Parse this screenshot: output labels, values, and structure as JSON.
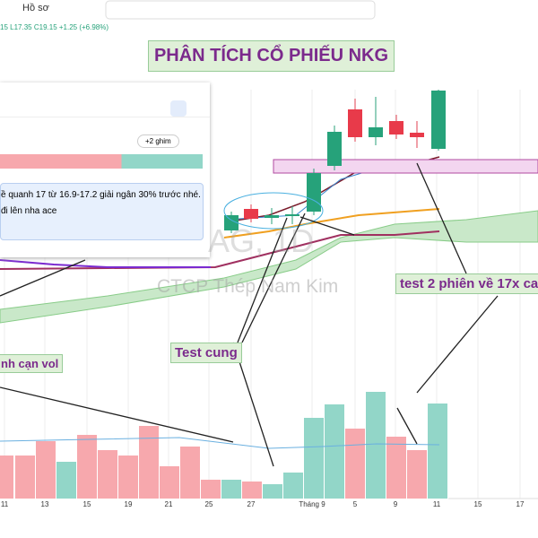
{
  "toolbar": {
    "profile": "Hồ sơ"
  },
  "ohlc": {
    "prefix": "15",
    "low": "L17.35",
    "close": "C19.15",
    "change": "+1.25 (+6.98%)"
  },
  "title": "PHÂN TÍCH CỔ PHIẾU NKG",
  "panel": {
    "pins": "+2 ghim",
    "message": [
      "ề quanh 17 từ 16.9-17.2 giải ngân 30% trước nhé.",
      "đi lên nha ace"
    ]
  },
  "watermark": {
    "symbol": "AG, 1D",
    "company": "CTCP Thép Nam Kim"
  },
  "annotations": [
    "test 2 phiên về 17x ca",
    "Test cung",
    "nh cạn vol"
  ],
  "x_axis": {
    "labels": [
      "11",
      "13",
      "15",
      "19",
      "21",
      "25",
      "27",
      "Tháng 9",
      "5",
      "9",
      "11",
      "15",
      "17"
    ]
  }
}
